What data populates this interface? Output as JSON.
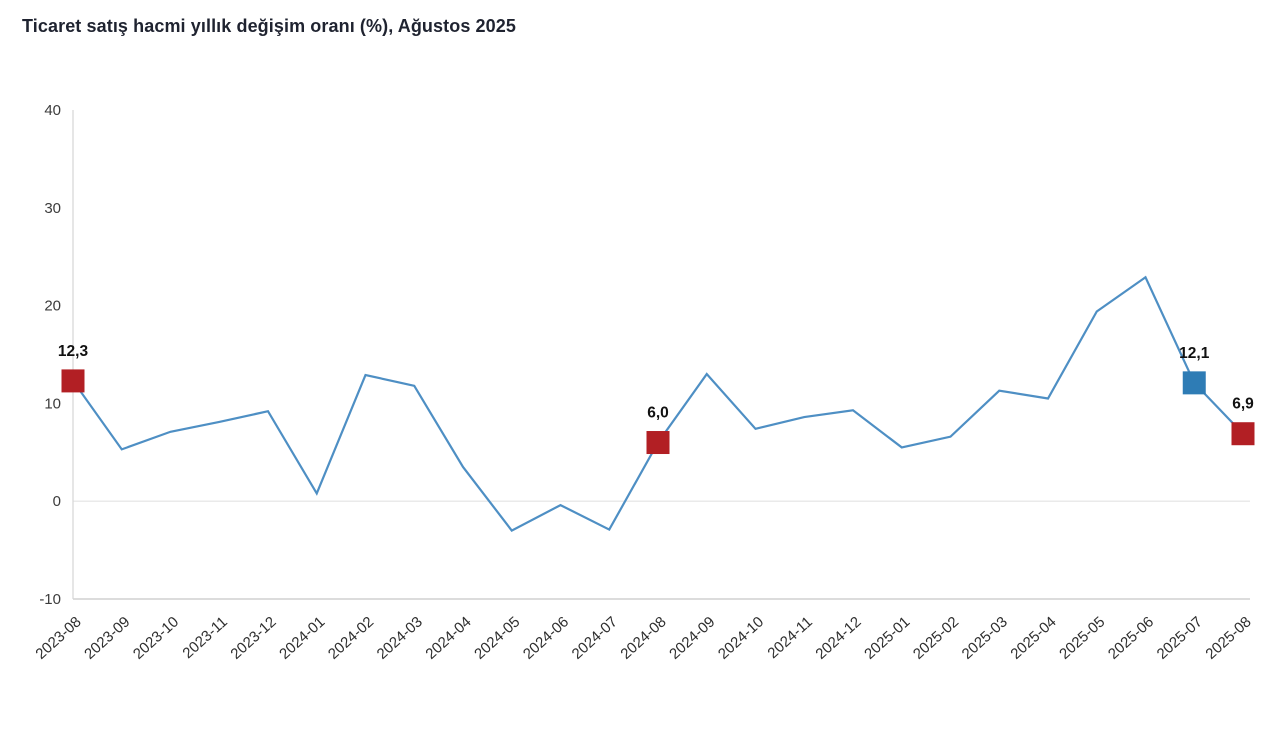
{
  "title": "Ticaret satış hacmi yıllık değişim oranı (%), Ağustos 2025",
  "chart_data": {
    "type": "line",
    "title": "Ticaret satış hacmi yıllık değişim oranı (%), Ağustos 2025",
    "xlabel": "",
    "ylabel": "",
    "x": [
      "2023-08",
      "2023-09",
      "2023-10",
      "2023-11",
      "2023-12",
      "2024-01",
      "2024-02",
      "2024-03",
      "2024-04",
      "2024-05",
      "2024-06",
      "2024-07",
      "2024-08",
      "2024-09",
      "2024-10",
      "2024-11",
      "2024-12",
      "2025-01",
      "2025-02",
      "2025-03",
      "2025-04",
      "2025-05",
      "2025-06",
      "2025-07",
      "2025-08"
    ],
    "series": [
      {
        "name": "Ticaret satış hacmi yıllık değişim oranı (%)",
        "values": [
          12.3,
          5.3,
          7.1,
          8.1,
          9.2,
          0.8,
          12.9,
          11.8,
          3.5,
          -3.0,
          -0.4,
          -2.9,
          6.0,
          13.0,
          7.4,
          8.6,
          9.3,
          5.5,
          6.6,
          11.3,
          10.5,
          19.4,
          22.9,
          12.1,
          6.9
        ]
      }
    ],
    "ylim": [
      -10,
      40
    ],
    "yticks": [
      40,
      30,
      20,
      10,
      0,
      -10
    ],
    "grid": "zero-line and bottom axis only, vertical y-axis line at left",
    "legend": "none",
    "annotations": [
      {
        "x": "2023-08",
        "value": 12.3,
        "label": "12,3",
        "marker": "square",
        "color": "#b21f24"
      },
      {
        "x": "2024-08",
        "value": 6.0,
        "label": "6,0",
        "marker": "square",
        "color": "#b21f24"
      },
      {
        "x": "2025-07",
        "value": 12.1,
        "label": "12,1",
        "marker": "square",
        "color": "#2e7cb5"
      },
      {
        "x": "2025-08",
        "value": 6.9,
        "label": "6,9",
        "marker": "square",
        "color": "#b21f24"
      }
    ],
    "colors": {
      "line": "#4e8fc4",
      "marker_red": "#b21f24",
      "marker_blue": "#2e7cb5",
      "zero_line": "#e3e3e3",
      "axis": "#c7c7c7",
      "y_axis": "#d6d6d6"
    }
  }
}
